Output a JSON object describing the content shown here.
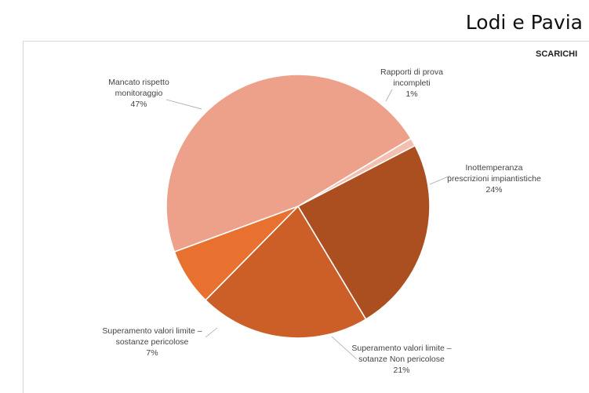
{
  "header": {
    "title": "Lodi e Pavia"
  },
  "chart_data": {
    "type": "pie",
    "title": "SCARICHI",
    "slices": [
      {
        "label_lines": [
          "Rapporti di prova",
          "incompleti"
        ],
        "value": 1,
        "pct_label": "1%",
        "color": "#f2c0b0"
      },
      {
        "label_lines": [
          "Inottemperanza",
          "prescrizioni impiantistiche"
        ],
        "value": 24,
        "pct_label": "24%",
        "color": "#ab4e20"
      },
      {
        "label_lines": [
          "Superamento valori limite –",
          "sotanze Non pericolose"
        ],
        "value": 21,
        "pct_label": "21%",
        "color": "#cc5e27"
      },
      {
        "label_lines": [
          "Superamento valori limite –",
          "sostanze pericolose"
        ],
        "value": 7,
        "pct_label": "7%",
        "color": "#e8712f"
      },
      {
        "label_lines": [
          "Mancato rispetto",
          "monitoraggio"
        ],
        "value": 47,
        "pct_label": "47%",
        "color": "#eda08a"
      }
    ]
  }
}
